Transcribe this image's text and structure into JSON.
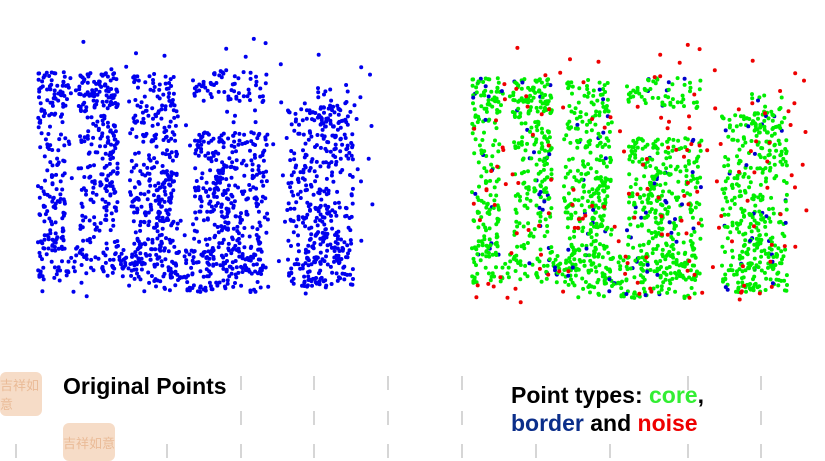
{
  "captions": {
    "left": "Original Points",
    "right_prefix": "Point types: ",
    "core": "core",
    "comma": ",",
    "border": "border",
    "and": " and ",
    "noise": "noise"
  },
  "colors": {
    "original": "#0000ee",
    "core": "#00ee00",
    "border": "#0000cc",
    "noise": "#ee0000"
  },
  "stamp_text": "吉祥如意"
}
